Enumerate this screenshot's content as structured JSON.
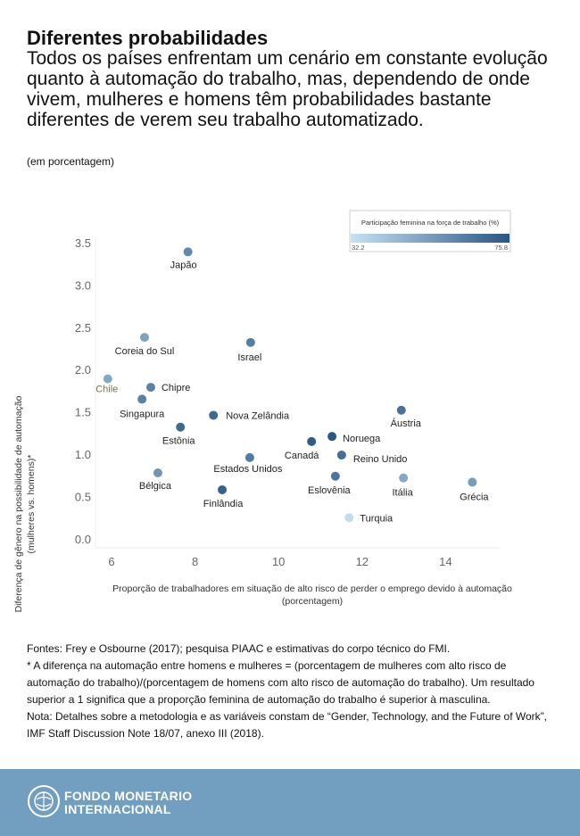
{
  "header": {
    "title": "Diferentes probabilidades",
    "subtitle": "Todos os países enfrentam um cenário em constante evolução quanto à automação do trabalho, mas, dependendo de onde vivem, mulheres e homens têm probabilidades bastante diferentes de verem seu trabalho automatizado.",
    "unit": "(em porcentagem)"
  },
  "chart_data": {
    "type": "scatter",
    "xlabel": "Proporção de trabalhadores em situação de alto risco de perder o emprego devido à automação (porcentagem)",
    "ylabel": "Diferença de gênero na possibilidade de automação (mulheres vs. homens)*",
    "xlim": [
      5.6,
      15.6
    ],
    "ylim": [
      0,
      3.6
    ],
    "xticks": [
      "6",
      "8",
      "10",
      "12",
      "14"
    ],
    "yticks": [
      "0.0",
      "0.5",
      "1.0",
      "1.5",
      "2.0",
      "2.5",
      "3.0",
      "3.5"
    ],
    "grid": false,
    "legend": {
      "title": "Participação feminina na força de trabalho (%)",
      "min": "32.2",
      "max": "75.8",
      "placement": "top-right",
      "color_low": "#c6e2f3",
      "color_high": "#2a5583"
    },
    "points": [
      {
        "label": "Japão",
        "x": 7.83,
        "y": 3.39,
        "color_value": 60
      },
      {
        "label": "Coreia do Sul",
        "x": 6.79,
        "y": 2.38,
        "color_value": 52
      },
      {
        "label": "Israel",
        "x": 9.33,
        "y": 2.32,
        "color_value": 63
      },
      {
        "label": "Chile",
        "x": 5.91,
        "y": 1.89,
        "color_value": 50
      },
      {
        "label": "Chipre",
        "x": 6.94,
        "y": 1.79,
        "color_value": 62
      },
      {
        "label": "Singapura",
        "x": 6.73,
        "y": 1.65,
        "color_value": 62
      },
      {
        "label": "Nova Zelândia",
        "x": 8.44,
        "y": 1.46,
        "color_value": 70
      },
      {
        "label": "Estônia",
        "x": 7.65,
        "y": 1.32,
        "color_value": 70
      },
      {
        "label": "Áustria",
        "x": 12.94,
        "y": 1.52,
        "color_value": 67
      },
      {
        "label": "Noruega",
        "x": 11.28,
        "y": 1.21,
        "color_value": 75
      },
      {
        "label": "Canadá",
        "x": 10.79,
        "y": 1.15,
        "color_value": 74
      },
      {
        "label": "Reino Unido",
        "x": 11.51,
        "y": 0.99,
        "color_value": 68
      },
      {
        "label": "Estados Unidos",
        "x": 9.31,
        "y": 0.96,
        "color_value": 64
      },
      {
        "label": "Bélgica",
        "x": 7.11,
        "y": 0.78,
        "color_value": 56
      },
      {
        "label": "Eslovênia",
        "x": 11.36,
        "y": 0.74,
        "color_value": 66
      },
      {
        "label": "Itália",
        "x": 12.99,
        "y": 0.72,
        "color_value": 50
      },
      {
        "label": "Grécia",
        "x": 14.64,
        "y": 0.67,
        "color_value": 54
      },
      {
        "label": "Finlândia",
        "x": 8.65,
        "y": 0.58,
        "color_value": 72
      },
      {
        "label": "Turquia",
        "x": 11.69,
        "y": 0.25,
        "color_value": 34
      }
    ]
  },
  "notes": {
    "sources": "Fontes: Frey e Osbourne (2017); pesquisa PIAAC e estimativas do corpo técnico do FMI.",
    "footnote": "* A diferença na automação entre homens e mulheres = (porcentagem de mulheres com alto risco de automação do trabalho)/(porcentagem de homens com alto risco de automação do trabalho). Um resultado superior a 1 significa que a proporção feminina de automação do trabalho é superior à masculina.",
    "method": "Nota: Detalhes sobre a metodologia e as variáveis constam de “Gender, Technology, and the Future of Work”, IMF Staff Discussion Note 18/07, anexo III (2018)."
  },
  "footer": {
    "org_line1": "FONDO MONETARIO",
    "org_line2": "INTERNACIONAL",
    "logo_icon": "imf-seal-icon",
    "background": "#729fbf"
  }
}
